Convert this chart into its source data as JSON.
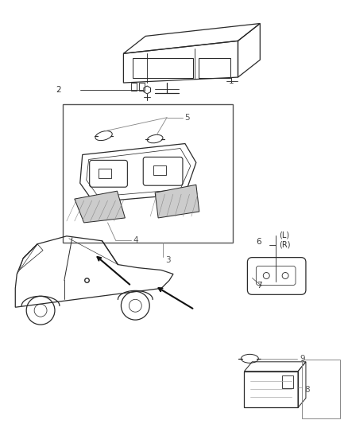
{
  "bg_color": "#ffffff",
  "line_color": "#2a2a2a",
  "gray_color": "#888888",
  "fig_width": 4.38,
  "fig_height": 5.33,
  "dpi": 100
}
